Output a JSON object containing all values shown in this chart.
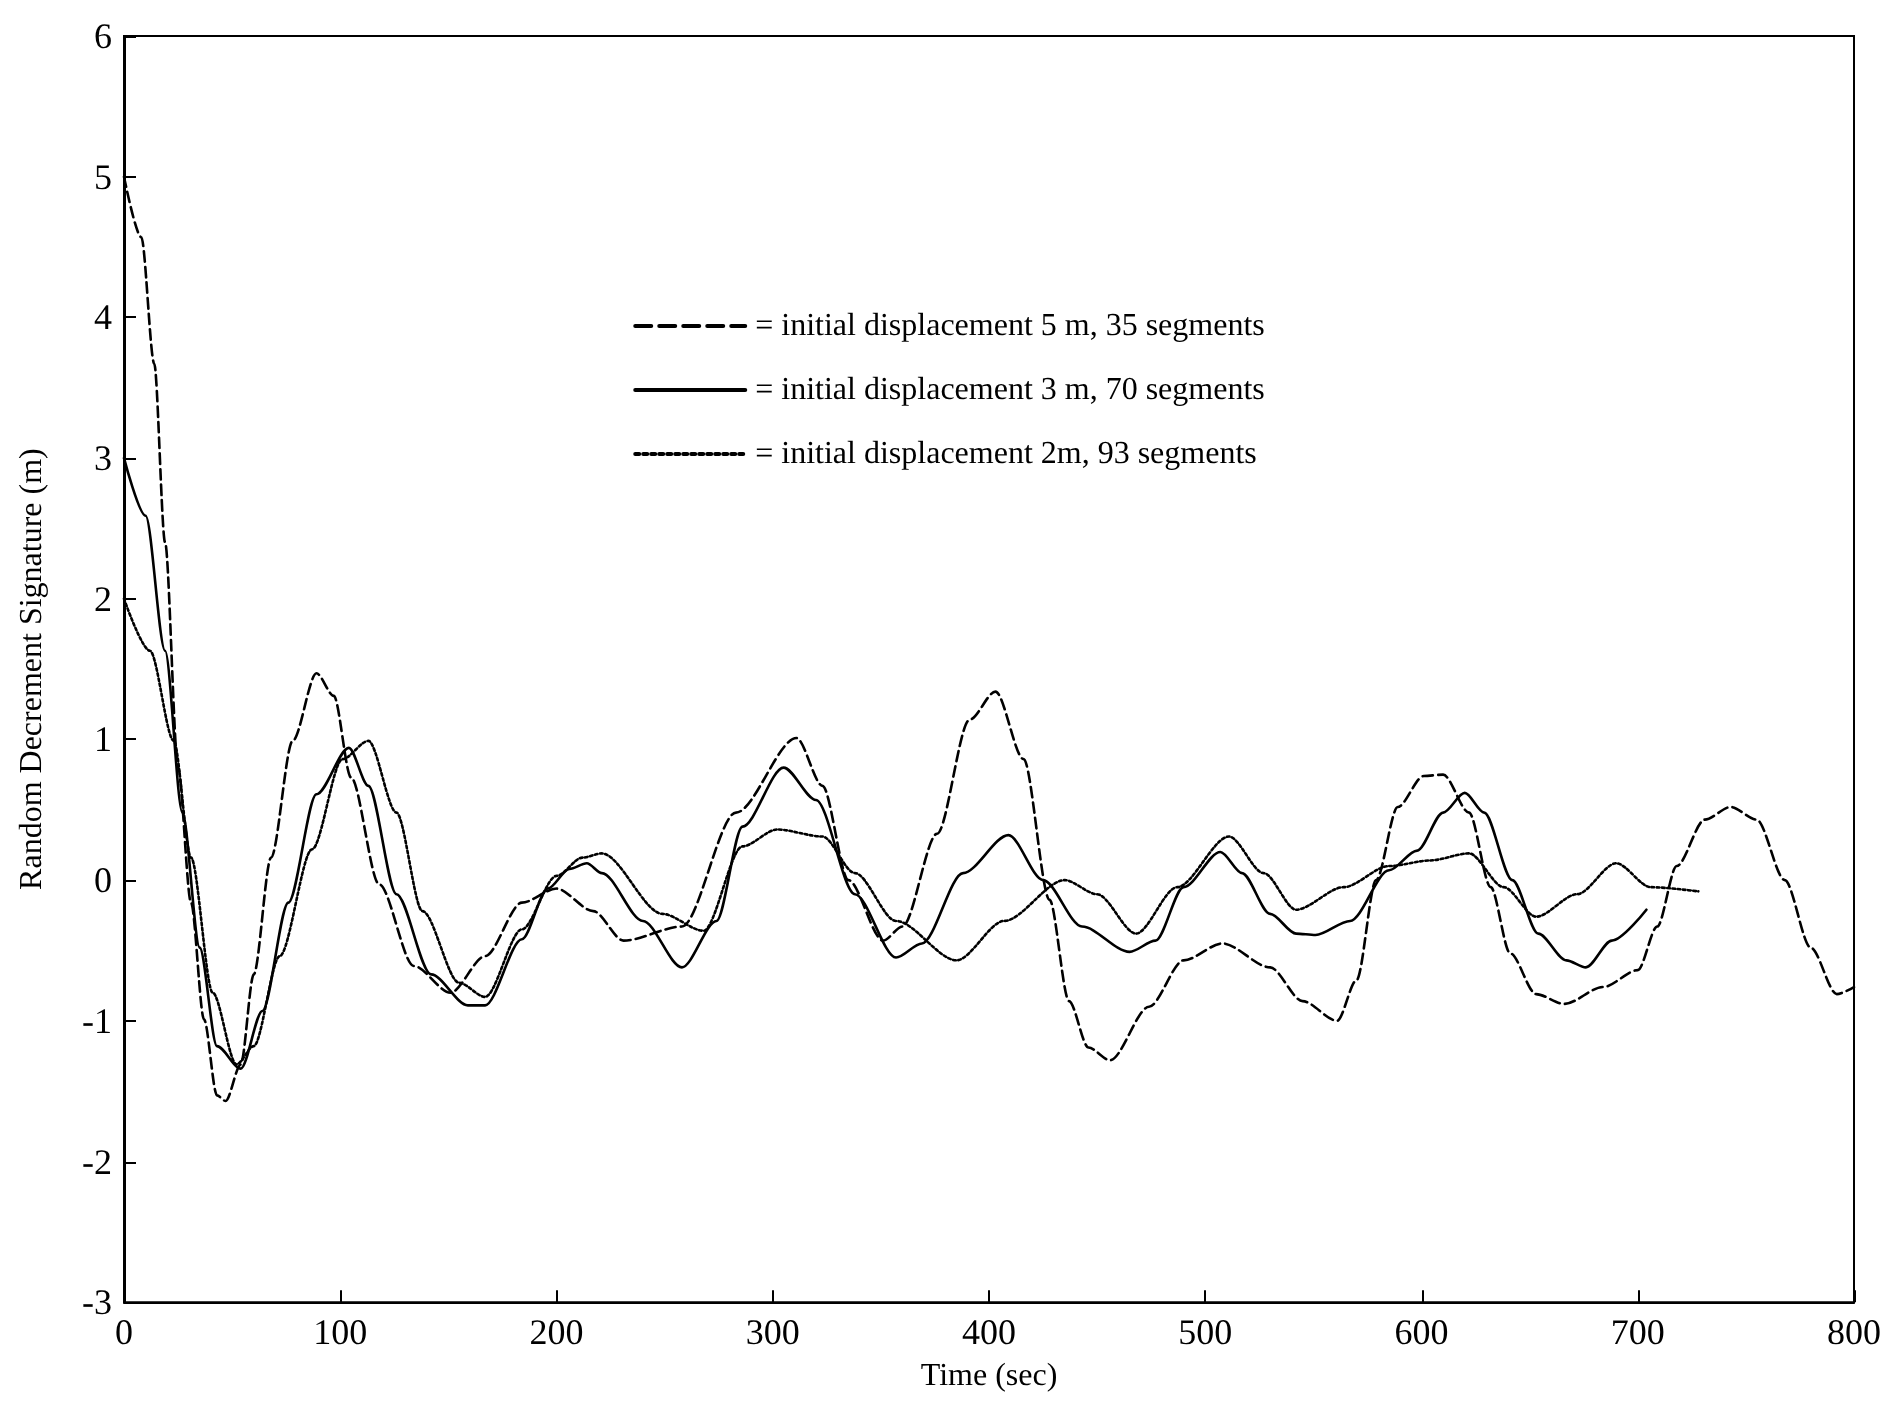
{
  "chart_data": {
    "type": "line",
    "xlabel": "Time (sec)",
    "ylabel": "Random Decrement Signature (m)",
    "xlim": [
      0,
      800
    ],
    "xticks": [
      0,
      100,
      200,
      300,
      400,
      500,
      600,
      700,
      800
    ],
    "ylim": [
      -3,
      6
    ],
    "yticks": [
      -3,
      -2,
      -1,
      0,
      1,
      2,
      3,
      4,
      5,
      6
    ],
    "grid": false,
    "legend": "top",
    "marker": "none",
    "series": [
      {
        "name": "= initial displacement 5 m, 35 segments",
        "color": "#000000",
        "line_style": "dashed",
        "x": [
          0,
          8,
          14,
          19,
          25,
          31,
          37,
          43,
          47,
          54,
          60,
          68,
          78,
          89,
          97,
          105,
          118,
          134,
          151,
          167,
          184,
          200,
          217,
          231,
          258,
          283,
          311,
          323,
          335,
          351,
          360,
          376,
          391,
          403,
          416,
          428,
          437,
          446,
          456,
          474,
          490,
          508,
          530,
          545,
          561,
          570,
          579,
          589,
          601,
          610,
          622,
          632,
          641,
          653,
          666,
          684,
          700,
          709,
          718,
          731,
          743,
          755,
          768,
          780,
          792,
          800
        ],
        "values": [
          5.0,
          4.57,
          3.67,
          2.4,
          0.8,
          -0.16,
          -0.99,
          -1.53,
          -1.57,
          -1.31,
          -0.67,
          0.16,
          0.99,
          1.47,
          1.31,
          0.73,
          -0.03,
          -0.61,
          -0.8,
          -0.54,
          -0.16,
          -0.06,
          -0.22,
          -0.43,
          -0.33,
          0.48,
          1.01,
          0.67,
          0.0,
          -0.43,
          -0.33,
          0.33,
          1.14,
          1.34,
          0.86,
          -0.14,
          -0.86,
          -1.19,
          -1.28,
          -0.9,
          -0.57,
          -0.45,
          -0.62,
          -0.86,
          -1.0,
          -0.71,
          0.0,
          0.52,
          0.74,
          0.75,
          0.48,
          -0.05,
          -0.52,
          -0.81,
          -0.88,
          -0.76,
          -0.64,
          -0.33,
          0.1,
          0.43,
          0.52,
          0.43,
          0.0,
          -0.48,
          -0.81,
          -0.76
        ]
      },
      {
        "name": "= initial displacement 3 m, 70 segments",
        "color": "#000000",
        "line_style": "solid",
        "x": [
          0,
          10,
          19,
          27,
          35,
          43,
          54,
          64,
          76,
          89,
          104,
          113,
          126,
          142,
          159,
          167,
          184,
          196,
          206,
          214,
          221,
          240,
          258,
          274,
          286,
          305,
          320,
          338,
          357,
          369,
          388,
          409,
          425,
          443,
          465,
          477,
          490,
          507,
          517,
          530,
          542,
          551,
          567,
          585,
          598,
          610,
          620,
          629,
          642,
          654,
          667,
          676,
          688,
          704
        ],
        "values": [
          3.0,
          2.59,
          1.63,
          0.48,
          -0.48,
          -1.18,
          -1.34,
          -0.93,
          -0.16,
          0.61,
          0.94,
          0.67,
          -0.1,
          -0.67,
          -0.89,
          -0.89,
          -0.42,
          -0.06,
          0.08,
          0.12,
          0.05,
          -0.29,
          -0.62,
          -0.29,
          0.38,
          0.8,
          0.57,
          -0.1,
          -0.55,
          -0.45,
          0.05,
          0.32,
          0.0,
          -0.33,
          -0.51,
          -0.43,
          -0.05,
          0.2,
          0.05,
          -0.24,
          -0.38,
          -0.39,
          -0.29,
          0.07,
          0.21,
          0.48,
          0.62,
          0.48,
          0.0,
          -0.38,
          -0.57,
          -0.62,
          -0.43,
          -0.21
        ]
      },
      {
        "name": "= initial displacement 2m, 93 segments",
        "color": "#000000",
        "line_style": "dotted",
        "x": [
          0,
          12,
          23,
          31,
          41,
          52,
          60,
          72,
          87,
          101,
          113,
          126,
          138,
          155,
          167,
          184,
          200,
          212,
          221,
          249,
          268,
          286,
          302,
          323,
          338,
          357,
          385,
          407,
          435,
          450,
          468,
          487,
          511,
          527,
          542,
          564,
          585,
          604,
          622,
          638,
          653,
          672,
          690,
          706,
          728
        ],
        "values": [
          2.0,
          1.63,
          0.99,
          0.16,
          -0.8,
          -1.31,
          -1.18,
          -0.54,
          0.22,
          0.86,
          0.99,
          0.48,
          -0.22,
          -0.73,
          -0.83,
          -0.35,
          0.03,
          0.16,
          0.19,
          -0.24,
          -0.36,
          0.24,
          0.36,
          0.31,
          0.05,
          -0.29,
          -0.57,
          -0.29,
          0.0,
          -0.1,
          -0.38,
          -0.05,
          0.31,
          0.05,
          -0.21,
          -0.05,
          0.1,
          0.14,
          0.19,
          -0.05,
          -0.26,
          -0.1,
          0.12,
          -0.05,
          -0.08
        ]
      }
    ]
  }
}
